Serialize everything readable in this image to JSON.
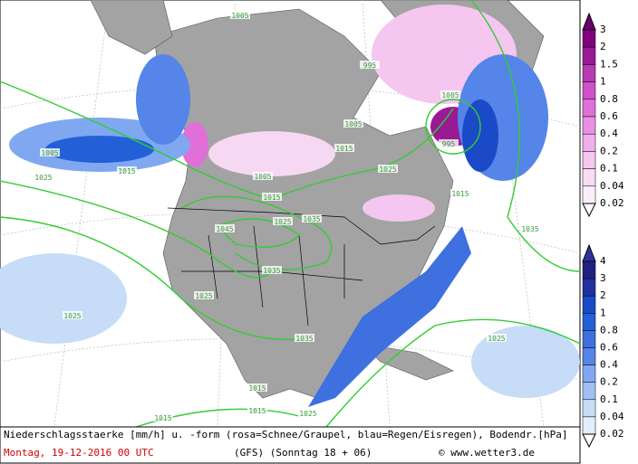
{
  "legend_snow": {
    "labels": [
      "3",
      "2",
      "1.5",
      "1",
      "0.8",
      "0.6",
      "0.4",
      "0.2",
      "0.1",
      "0.04",
      "0.02"
    ]
  },
  "legend_rain": {
    "labels": [
      "4",
      "3",
      "2",
      "1",
      "0.8",
      "0.6",
      "0.4",
      "0.2",
      "0.1",
      "0.04",
      "0.02"
    ]
  },
  "caption": {
    "description": "Niederschlagsstaerke [mm/h] u. -form (rosa=Schnee/Graupel, blau=Regen/Eisregen), Bodendr.[hPa]",
    "date": "Montag, 19-12-2016  00 UTC",
    "model": "(GFS)  (Sonntag 18 + 06)",
    "source": "© www.wetter3.de"
  },
  "isobar_labels": [
    "1025",
    "1015",
    "1015",
    "1005",
    "995",
    "1025",
    "1035",
    "1045",
    "1025",
    "1015",
    "1005",
    "1035",
    "1025",
    "1025",
    "1035",
    "1015",
    "1015",
    "1025",
    "1015",
    "1025",
    "1035",
    "995",
    "1005",
    "1005",
    "1015",
    "1005"
  ]
}
